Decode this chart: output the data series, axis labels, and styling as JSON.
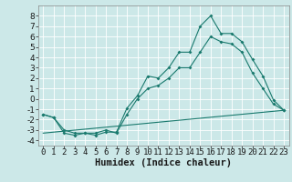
{
  "xlabel": "Humidex (Indice chaleur)",
  "bg_color": "#cce8e8",
  "grid_color": "#ffffff",
  "line_color": "#1a7a6e",
  "xlim": [
    -0.5,
    23.5
  ],
  "ylim": [
    -4.5,
    9.0
  ],
  "xticks": [
    0,
    1,
    2,
    3,
    4,
    5,
    6,
    7,
    8,
    9,
    10,
    11,
    12,
    13,
    14,
    15,
    16,
    17,
    18,
    19,
    20,
    21,
    22,
    23
  ],
  "yticks": [
    -4,
    -3,
    -2,
    -1,
    0,
    1,
    2,
    3,
    4,
    5,
    6,
    7,
    8
  ],
  "line1_x": [
    0,
    1,
    2,
    3,
    4,
    5,
    6,
    7,
    8,
    9,
    10,
    11,
    12,
    13,
    14,
    15,
    16,
    17,
    18,
    19,
    20,
    21,
    22,
    23
  ],
  "line1_y": [
    -1.5,
    -1.8,
    -3.3,
    -3.5,
    -3.3,
    -3.5,
    -3.2,
    -3.2,
    -0.9,
    0.3,
    2.2,
    2.0,
    3.0,
    4.5,
    4.5,
    7.0,
    8.0,
    6.3,
    6.3,
    5.5,
    3.8,
    2.2,
    -0.1,
    -1.1
  ],
  "line2_x": [
    0,
    1,
    2,
    3,
    4,
    5,
    6,
    7,
    8,
    9,
    10,
    11,
    12,
    13,
    14,
    15,
    16,
    17,
    18,
    19,
    20,
    21,
    22,
    23
  ],
  "line2_y": [
    -1.5,
    -1.8,
    -3.0,
    -3.3,
    -3.3,
    -3.3,
    -3.0,
    -3.3,
    -1.5,
    0.0,
    1.0,
    1.3,
    2.0,
    3.0,
    3.0,
    4.5,
    6.0,
    5.5,
    5.3,
    4.5,
    2.5,
    1.0,
    -0.5,
    -1.1
  ],
  "line3_x": [
    0,
    23
  ],
  "line3_y": [
    -3.3,
    -1.1
  ],
  "xlabel_fontsize": 7.5,
  "tick_fontsize": 6.5,
  "linewidth": 0.8,
  "markersize": 2.0
}
